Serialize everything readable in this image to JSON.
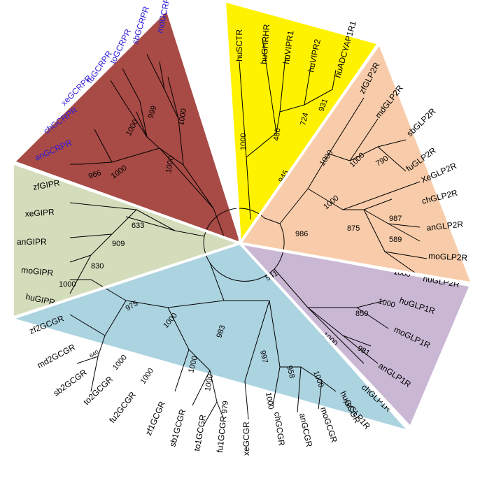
{
  "colors": {
    "red_clade": "#a84a45",
    "yellow_clade": "#fff200",
    "orange_clade": "#f8ccaa",
    "purple_clade": "#c9b7d4",
    "blue_clade": "#acd3e0",
    "green_clade": "#d3ddbb",
    "gcrpr_label": "#2a1bd8",
    "default_label": "#000000"
  },
  "leaves": {
    "mdGCRPR": "mdGCRPR",
    "sbGCRPR": "sbGCRPR",
    "toGCRPR": "toGCRPR",
    "fuGCRPR": "fuGCRPR",
    "xeGCRPR": "xeGCRPR",
    "chGCRPR": "chGCRPR",
    "anGCRPR": "anGCRPR",
    "huSCTR": "huSCTR",
    "huGHRHR": "huGHRHR",
    "huVIPR1": "huVIPR1",
    "huVIPR2": "huVIPR2",
    "huADCYAP1R1": "huADCYAP1R1",
    "zfGLP2R": "zfGLP2R",
    "mdGLP2R": "mdGLP2R",
    "sbGLP2R": "sbGLP2R",
    "fuGLP2R": "fuGLP2R",
    "XeGLP2R": "XeGLP2R",
    "chGLP2R": "chGLP2R",
    "anGLP2R": "anGLP2R",
    "moGLP2R": "moGLP2R",
    "huGLP2R": "huGLP2R",
    "huGLP1R": "huGLP1R",
    "moGLP1R": "moGLP1R",
    "anGLP1R": "anGLP1R",
    "chGLP1R": "chGLP1R",
    "xeGLP1R": "xeGLP1R",
    "zfGIPR": "zfGIPR",
    "xeGIPR": "xeGIPR",
    "anGIPR": "anGIPR",
    "moGIPR": "moGIPR",
    "huGIPR": "huGIPR",
    "zf2GCGR": "zf2GCGR",
    "md2GCGR": "md2GCGR",
    "sb2GCGR": "sb2GCGR",
    "to2GCGR": "to2GCGR",
    "fu2GCGR": "fu2GCGR",
    "zf1GCGR": "zf1GCGR",
    "sb1GCGR": "sb1GCGR",
    "to1GCGR": "to1GCGR",
    "fu1GCGR": "fu1GCGR",
    "xeGCGR": "xeGCGR",
    "chGCGR": "chGCGR",
    "anGCGR": "anGCGR",
    "moGCGR": "moGCGR",
    "huGCGR": "huGCGR"
  },
  "bootstrap": {
    "red_999": "999",
    "red_1000_a": "1000",
    "red_1000_b": "1000",
    "red_1000_c": "1000",
    "red_1000_d": "1000",
    "red_966": "966",
    "yellow_1000": "1000",
    "yellow_480": "480",
    "yellow_724": "724",
    "yellow_931": "931",
    "root_945": "945",
    "orange_1000_a": "1000",
    "orange_1000_b": "1000",
    "orange_790": "790",
    "orange_1000_c": "1000",
    "orange_875": "875",
    "orange_987": "987",
    "orange_589": "589",
    "orange_1000_d": "1000",
    "root_986": "986",
    "purple_1000_a": "1000",
    "purple_850": "850",
    "purple_981": "981",
    "purple_1000_b": "1000",
    "root_541": "541",
    "green_633": "633",
    "green_909": "909",
    "green_830": "830",
    "green_1000": "1000",
    "blue_975": "975",
    "blue_1000_a": "1000",
    "blue_983": "983",
    "blue_640": "640",
    "blue_1000_b": "1000",
    "blue_1000_c": "1000",
    "blue_1000_d": "1000",
    "blue_1000_e": "1000",
    "blue_979": "979",
    "blue_997": "997",
    "blue_958": "958",
    "blue_1000_f": "1000",
    "blue_1000_g": "1000"
  }
}
